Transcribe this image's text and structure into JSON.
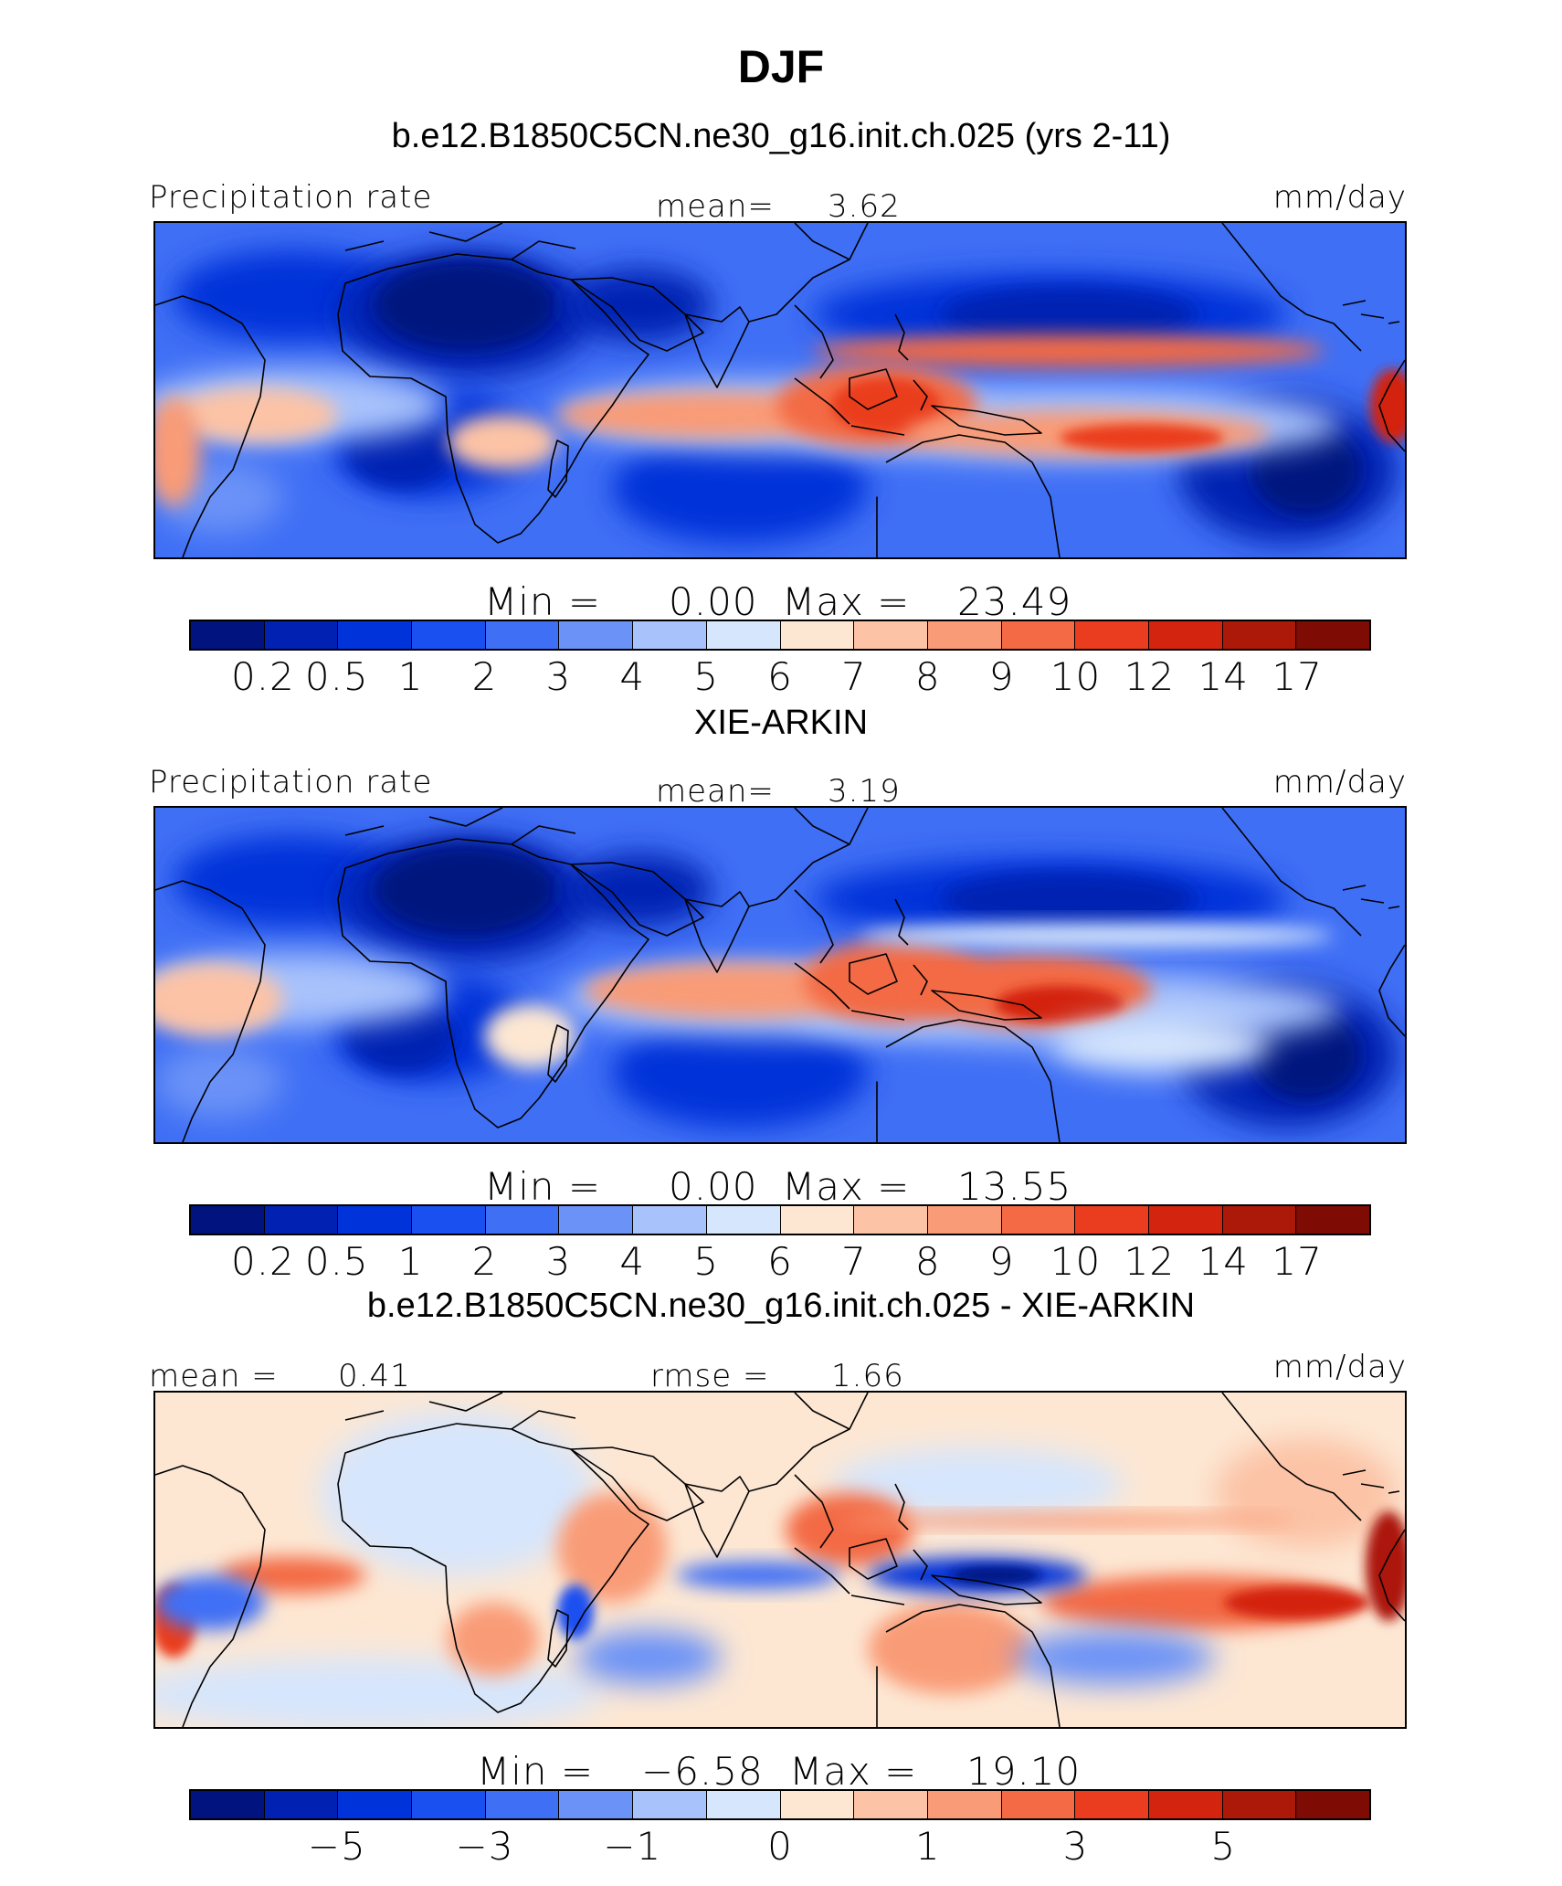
{
  "page": {
    "title": "DJF"
  },
  "chart_data": [
    {
      "type": "heatmap",
      "title": "b.e12.B1850C5CN.ne30_g16.init.ch.025 (yrs 2-11)",
      "left_label": "Precipitation rate",
      "center_label": "mean=",
      "center_value": "3.62",
      "units": "mm/day",
      "min_label": "Min  =",
      "min_value": "0.00",
      "max_label": "Max  =",
      "max_value": "23.49",
      "colorbar_ticks": [
        "0.2",
        "0.5",
        "1",
        "2",
        "3",
        "4",
        "5",
        "6",
        "7",
        "8",
        "9",
        "10",
        "12",
        "14",
        "17"
      ],
      "colorbar_colors": [
        "#00137f",
        "#0021b2",
        "#0033d9",
        "#1a4ff0",
        "#3f6ff5",
        "#6b92f7",
        "#a8c2fb",
        "#d6e6fd",
        "#fde7d3",
        "#fcc3a6",
        "#f99b77",
        "#f36a44",
        "#ea3c1f",
        "#d32410",
        "#ac1909",
        "#7e0b04"
      ],
      "map_theme": "model"
    },
    {
      "type": "heatmap",
      "title": "XIE-ARKIN",
      "left_label": "Precipitation rate",
      "center_label": "mean=",
      "center_value": "3.19",
      "units": "mm/day",
      "min_label": "Min  =",
      "min_value": "0.00",
      "max_label": "Max  =",
      "max_value": "13.55",
      "colorbar_ticks": [
        "0.2",
        "0.5",
        "1",
        "2",
        "3",
        "4",
        "5",
        "6",
        "7",
        "8",
        "9",
        "10",
        "12",
        "14",
        "17"
      ],
      "colorbar_colors": [
        "#00137f",
        "#0021b2",
        "#0033d9",
        "#1a4ff0",
        "#3f6ff5",
        "#6b92f7",
        "#a8c2fb",
        "#d6e6fd",
        "#fde7d3",
        "#fcc3a6",
        "#f99b77",
        "#f36a44",
        "#ea3c1f",
        "#d32410",
        "#ac1909",
        "#7e0b04"
      ],
      "map_theme": "obs"
    },
    {
      "type": "heatmap",
      "title": "b.e12.B1850C5CN.ne30_g16.init.ch.025 - XIE-ARKIN",
      "left_label": "mean =",
      "left_value": "0.41",
      "center_label": "rmse =",
      "center_value": "1.66",
      "units": "mm/day",
      "min_label": "Min  =",
      "min_value": "−6.58",
      "max_label": "Max  =",
      "max_value": "19.10",
      "colorbar_ticks": [
        "−5",
        "−3",
        "−1",
        "0",
        "1",
        "3",
        "5"
      ],
      "colorbar_colors": [
        "#00137f",
        "#0021b2",
        "#0033d9",
        "#1a4ff0",
        "#3f6ff5",
        "#6b92f7",
        "#a8c2fb",
        "#d6e6fd",
        "#fde7d3",
        "#fcc3a6",
        "#f99b77",
        "#f36a44",
        "#ea3c1f",
        "#d32410",
        "#ac1909",
        "#7e0b04"
      ],
      "map_theme": "diff"
    }
  ]
}
